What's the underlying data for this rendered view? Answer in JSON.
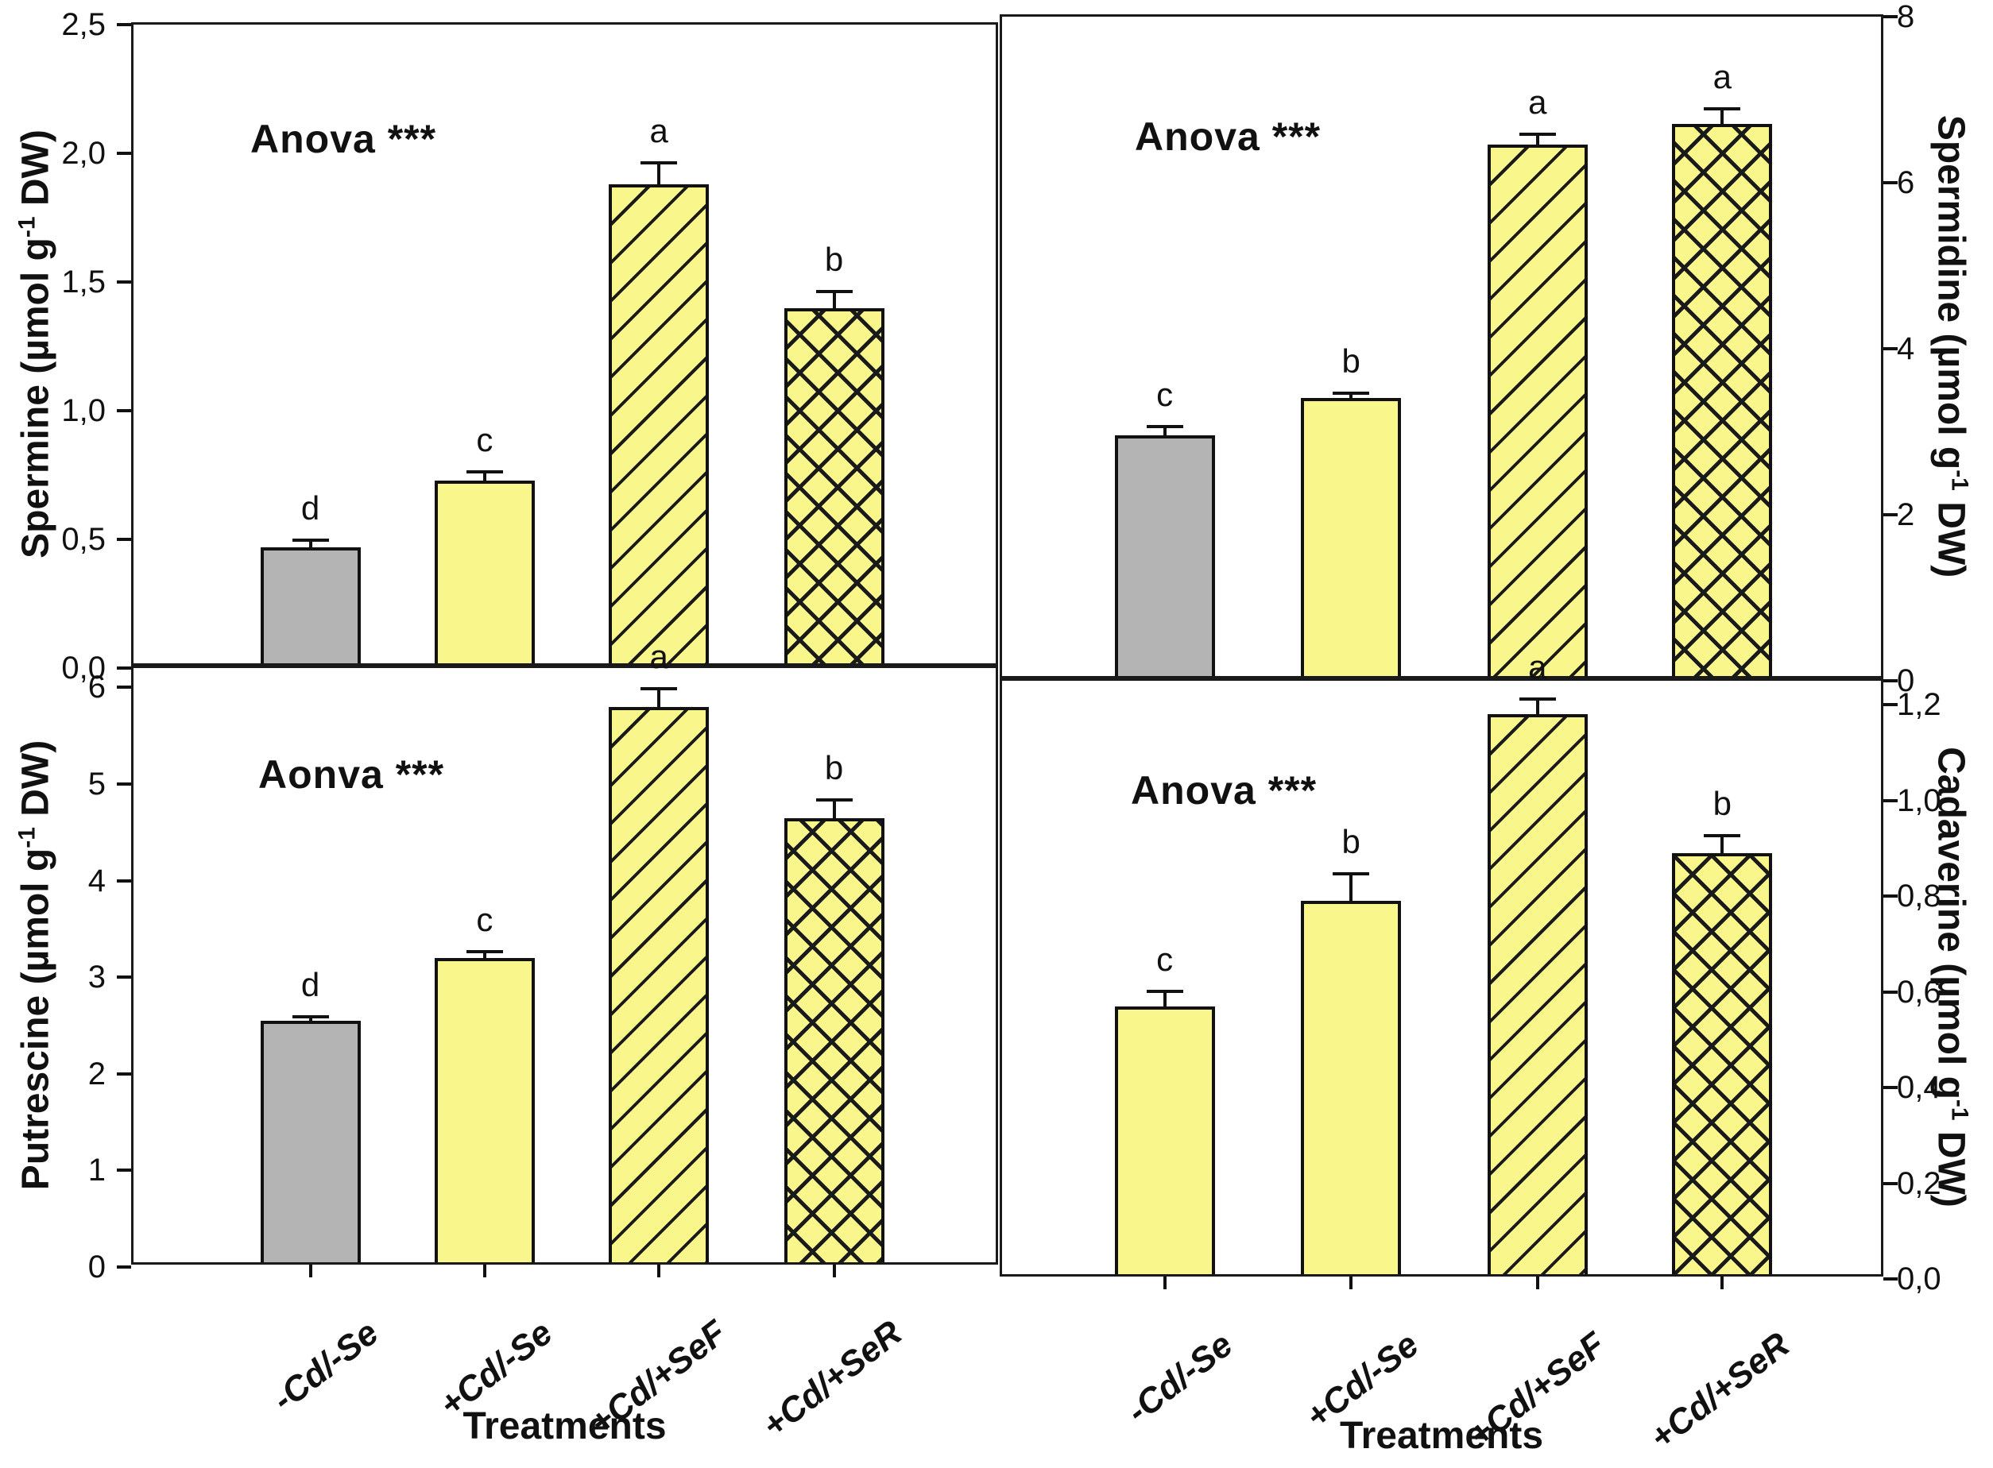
{
  "figure": {
    "background": "#ffffff",
    "colors": {
      "bar_gray": "#b4b4b4",
      "bar_yellow": "#f9f78c",
      "bar_border": "#111111",
      "hatch_line": "#1a1a1a",
      "axis_line": "#1a1a1a"
    },
    "categories": [
      "-Cd/-Se",
      "+Cd/-Se",
      "+Cd/+SeF",
      "+Cd/+SeR"
    ],
    "xlabel": "Treatments"
  },
  "chart_data": [
    {
      "id": "spermine",
      "type": "bar",
      "position": "top-left",
      "axis_side": "left",
      "annotation": "Anova ***",
      "ylabel": {
        "prefix": "Spermine (µmol g",
        "sup": "-1",
        "suffix": " DW)"
      },
      "ylim": [
        0,
        2.5
      ],
      "grid": false,
      "yticks": [
        {
          "v": 0.0,
          "label": "0,0"
        },
        {
          "v": 0.5,
          "label": "0,5"
        },
        {
          "v": 1.0,
          "label": "1,0"
        },
        {
          "v": 1.5,
          "label": "1,5"
        },
        {
          "v": 2.0,
          "label": "2,0"
        },
        {
          "v": 2.5,
          "label": "2,5"
        }
      ],
      "categories": [
        "-Cd/-Se",
        "+Cd/-Se",
        "+Cd/+SeF",
        "+Cd/+SeR"
      ],
      "values": [
        0.45,
        0.71,
        1.86,
        1.38
      ],
      "errors": [
        0.035,
        0.04,
        0.09,
        0.07
      ],
      "sig_letters": [
        "d",
        "c",
        "a",
        "b"
      ],
      "bar_styles": [
        "gray",
        "yellow",
        "diagonal",
        "crosshatch"
      ],
      "show_x_tick_labels": false,
      "xlabel": ""
    },
    {
      "id": "spermidine",
      "type": "bar",
      "position": "top-right",
      "axis_side": "right",
      "annotation": "Anova ***",
      "ylabel": {
        "prefix": "Spermidine (µmol g",
        "sup": "-1",
        "suffix": " DW)"
      },
      "ylim": [
        0,
        8
      ],
      "grid": false,
      "yticks": [
        {
          "v": 0,
          "label": "0"
        },
        {
          "v": 2,
          "label": "2"
        },
        {
          "v": 4,
          "label": "4"
        },
        {
          "v": 6,
          "label": "6"
        },
        {
          "v": 8,
          "label": "8"
        }
      ],
      "categories": [
        "-Cd/-Se",
        "+Cd/-Se",
        "+Cd/+SeF",
        "+Cd/+SeR"
      ],
      "values": [
        2.9,
        3.35,
        6.4,
        6.65
      ],
      "errors": [
        0.12,
        0.08,
        0.15,
        0.2
      ],
      "sig_letters": [
        "c",
        "b",
        "a",
        "a"
      ],
      "bar_styles": [
        "gray",
        "yellow",
        "diagonal",
        "crosshatch"
      ],
      "show_x_tick_labels": false,
      "xlabel": ""
    },
    {
      "id": "putrescine",
      "type": "bar",
      "position": "bottom-left",
      "axis_side": "left",
      "annotation": "Aonva ***",
      "ylabel": {
        "prefix": "Putrescine (µmol g",
        "sup": "-1",
        "suffix": " DW)"
      },
      "ylim": [
        0,
        6.2
      ],
      "grid": false,
      "yticks": [
        {
          "v": 0,
          "label": "0"
        },
        {
          "v": 1,
          "label": "1"
        },
        {
          "v": 2,
          "label": "2"
        },
        {
          "v": 3,
          "label": "3"
        },
        {
          "v": 4,
          "label": "4"
        },
        {
          "v": 5,
          "label": "5"
        },
        {
          "v": 6,
          "label": "6"
        }
      ],
      "categories": [
        "-Cd/-Se",
        "+Cd/-Se",
        "+Cd/+SeF",
        "+Cd/+SeR"
      ],
      "values": [
        2.5,
        3.15,
        5.75,
        4.6
      ],
      "errors": [
        0.06,
        0.08,
        0.2,
        0.2
      ],
      "sig_letters": [
        "d",
        "c",
        "a",
        "b"
      ],
      "bar_styles": [
        "gray",
        "yellow",
        "diagonal",
        "crosshatch"
      ],
      "show_x_tick_labels": true,
      "xlabel": "Treatments"
    },
    {
      "id": "cadaverine",
      "type": "bar",
      "position": "bottom-right",
      "axis_side": "right",
      "annotation": "Anova ***",
      "ylabel": {
        "prefix": "Cadaverine (µmol g",
        "sup": "-1",
        "suffix": " DW)"
      },
      "ylim": [
        0,
        1.25
      ],
      "grid": false,
      "yticks": [
        {
          "v": 0.0,
          "label": "0,0"
        },
        {
          "v": 0.2,
          "label": "0,2"
        },
        {
          "v": 0.4,
          "label": "0,4"
        },
        {
          "v": 0.6,
          "label": "0,6"
        },
        {
          "v": 0.8,
          "label": "0,8"
        },
        {
          "v": 1.0,
          "label": "1,0"
        },
        {
          "v": 1.2,
          "label": "1,2"
        }
      ],
      "categories": [
        "-Cd/-Se",
        "+Cd/-Se",
        "+Cd/+SeF",
        "+Cd/+SeR"
      ],
      "values": [
        0.56,
        0.78,
        1.17,
        0.88
      ],
      "errors": [
        0.035,
        0.06,
        0.035,
        0.04
      ],
      "sig_letters": [
        "c",
        "b",
        "a",
        "b"
      ],
      "bar_styles": [
        "yellow",
        "yellow",
        "diagonal",
        "crosshatch"
      ],
      "show_x_tick_labels": true,
      "xlabel": "Treatments"
    }
  ]
}
